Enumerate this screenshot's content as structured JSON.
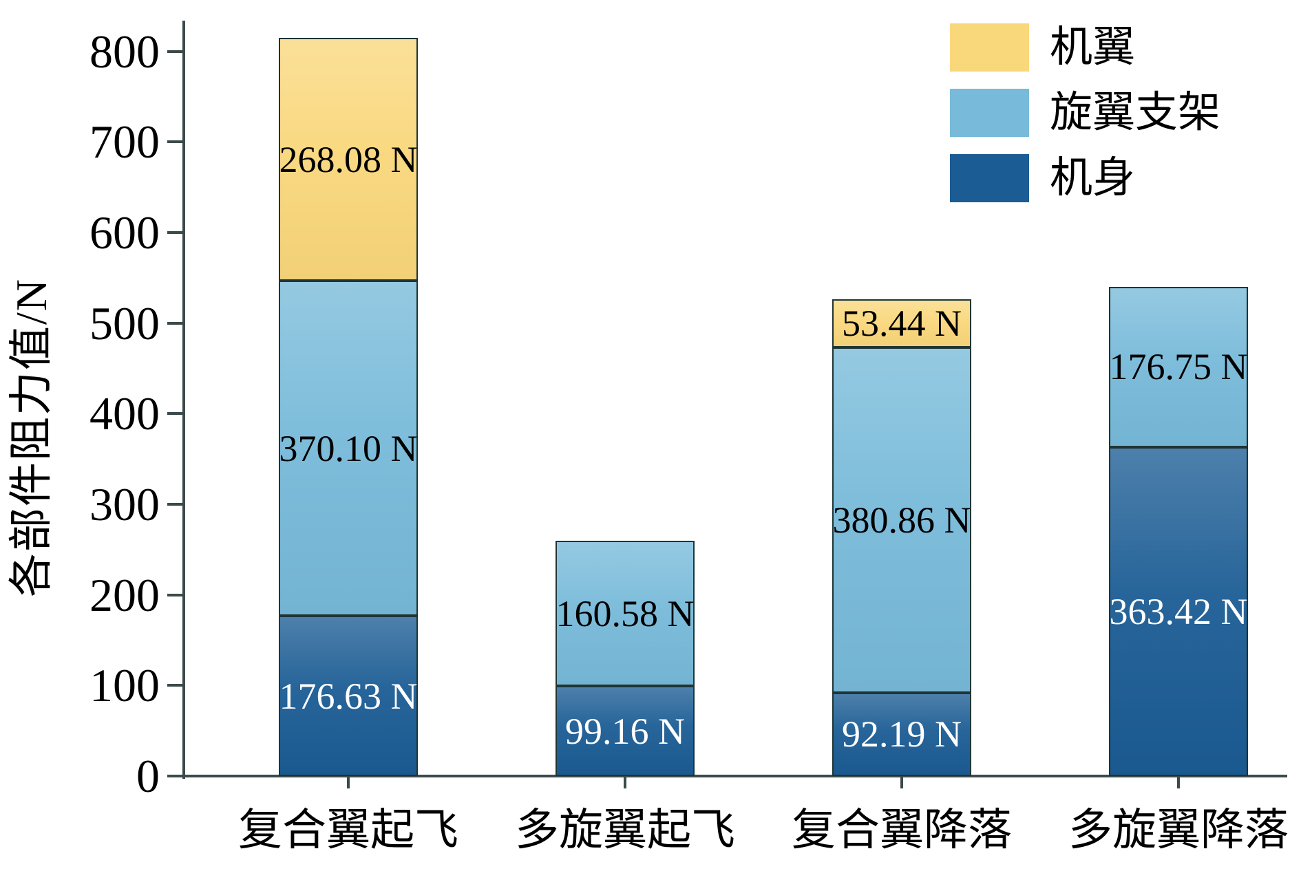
{
  "chart_data": {
    "type": "bar",
    "stacked": true,
    "title": "",
    "xlabel": "",
    "ylabel": "各部件阻力值/N",
    "unit": "N",
    "ylim": [
      0,
      834
    ],
    "yticks": [
      0,
      100,
      200,
      300,
      400,
      500,
      600,
      700,
      800
    ],
    "grid": false,
    "legend_position": "top-right",
    "categories": [
      "复合翼起飞",
      "多旋翼起飞",
      "复合翼降落",
      "多旋翼降落"
    ],
    "stack_order": "bottom-to-top",
    "series": [
      {
        "name": "机身",
        "color": "#1B5C94",
        "label_color": "#FFFFFF",
        "values": [
          176.63,
          99.16,
          92.19,
          363.42
        ],
        "value_labels": [
          "176.63 N",
          "99.16 N",
          "92.19 N",
          "363.42 N"
        ]
      },
      {
        "name": "旋翼支架",
        "color": "#77BAD9",
        "label_color": "#000000",
        "values": [
          370.1,
          160.58,
          380.86,
          176.75
        ],
        "value_labels": [
          "370.10 N",
          "160.58 N",
          "380.86 N",
          "176.75 N"
        ]
      },
      {
        "name": "机翼",
        "color": "#F9D77B",
        "label_color": "#000000",
        "values": [
          268.08,
          0,
          53.44,
          0
        ],
        "value_labels": [
          "268.08 N",
          "",
          "53.44 N",
          ""
        ]
      }
    ],
    "legend": [
      "机翼",
      "旋翼支架",
      "机身"
    ],
    "totals": [
      814.81,
      259.74,
      526.49,
      540.17
    ],
    "colors": {
      "axis": "#3B4A4A",
      "bar_border": "#1F3535",
      "background": "#FFFFFF"
    }
  }
}
